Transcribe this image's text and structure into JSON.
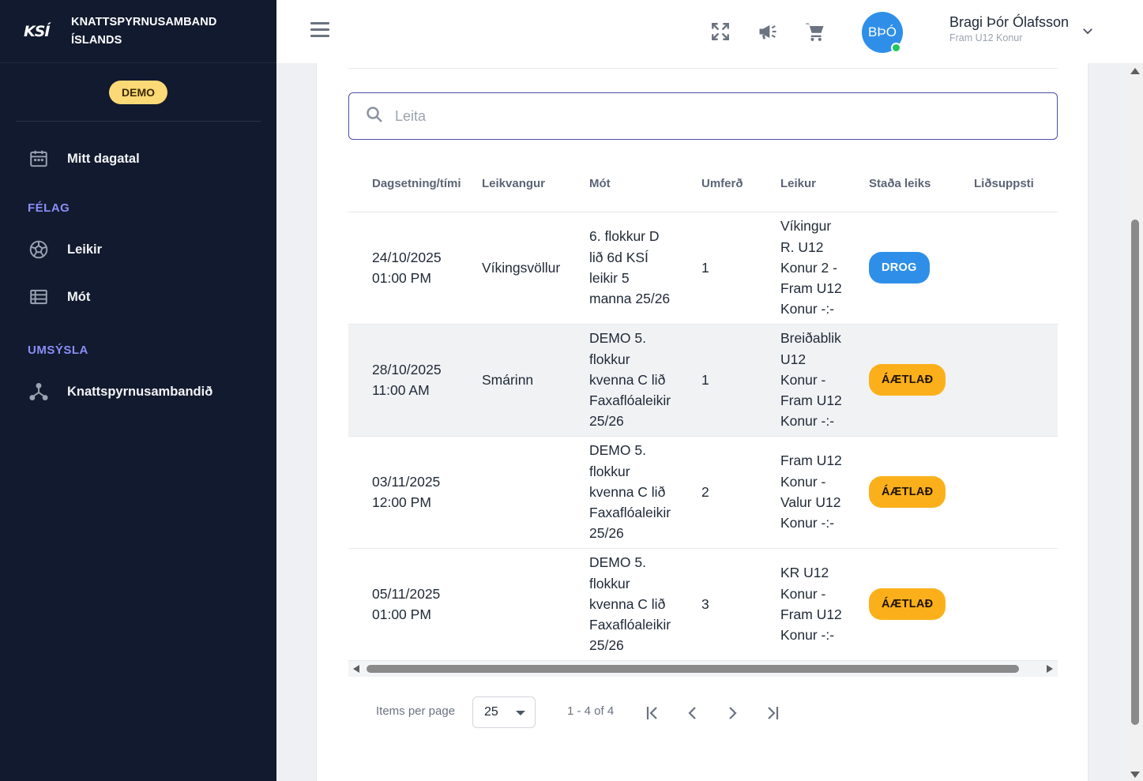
{
  "brand": {
    "logo": "KSÍ",
    "name_line1": "KNATTSPYRNUSAMBAND",
    "name_line2": "ÍSLANDS"
  },
  "demo_badge": "DEMO",
  "sidebar": {
    "items": [
      {
        "label": "Mitt dagatal",
        "icon": "calendar-icon"
      },
      {
        "label": "Leikir",
        "icon": "soccer-ball-icon"
      },
      {
        "label": "Mót",
        "icon": "table-list-icon"
      },
      {
        "label": "Knattspyrnusambandið",
        "icon": "organization-icon"
      }
    ],
    "sections": [
      "FÉLAG",
      "UMSÝSLA"
    ]
  },
  "header": {
    "user_initials": "BÞÓ",
    "user_name": "Bragi Þór Ólafsson",
    "user_role": "Fram U12 Konur",
    "icons": [
      "hamburger-icon",
      "fullscreen-icon",
      "megaphone-icon",
      "cart-icon",
      "chevron-down-icon"
    ]
  },
  "search": {
    "placeholder": "Leita"
  },
  "table": {
    "columns": [
      "Dagsetning/tími",
      "Leikvangur",
      "Mót",
      "Umferð",
      "Leikur",
      "Staða leiks",
      "Liðsuppsti"
    ],
    "rows": [
      {
        "date": "24/10/2025\n01:00 PM",
        "venue": "Víkingsvöllur",
        "tournament": "6. flokkur D\nlið 6d KSÍ\nleikir 5\nmanna 25/26",
        "round": "1",
        "match": "Víkingur\nR. U12\nKonur 2 -\nFram U12\nKonur -:-",
        "status": "DROG"
      },
      {
        "date": "28/10/2025\n11:00 AM",
        "venue": "Smárinn",
        "tournament": "DEMO 5.\nflokkur\nkvenna C lið\nFaxaflóaleikir\n25/26",
        "round": "1",
        "match": "Breiðablik\nU12\nKonur -\nFram U12\nKonur -:-",
        "status": "ÁÆTLAÐ"
      },
      {
        "date": "03/11/2025\n12:00 PM",
        "venue": "",
        "tournament": "DEMO 5.\nflokkur\nkvenna C lið\nFaxaflóaleikir\n25/26",
        "round": "2",
        "match": "Fram U12\nKonur -\nValur U12\nKonur -:-",
        "status": "ÁÆTLAÐ"
      },
      {
        "date": "05/11/2025\n01:00 PM",
        "venue": "",
        "tournament": "DEMO 5.\nflokkur\nkvenna C lið\nFaxaflóaleikir\n25/26",
        "round": "3",
        "match": "KR U12\nKonur -\nFram U12\nKonur -:-",
        "status": "ÁÆTLAÐ"
      }
    ]
  },
  "paginator": {
    "items_per_page_label": "Items per page",
    "page_size": "25",
    "range": "1 - 4 of 4"
  },
  "colors": {
    "sidebar_bg": "#111a2e",
    "accent_purple": "#8b8ef7",
    "status_drog": "#2f8fe8",
    "status_aetlad": "#fbb01b",
    "demo_badge": "#fcd977"
  }
}
